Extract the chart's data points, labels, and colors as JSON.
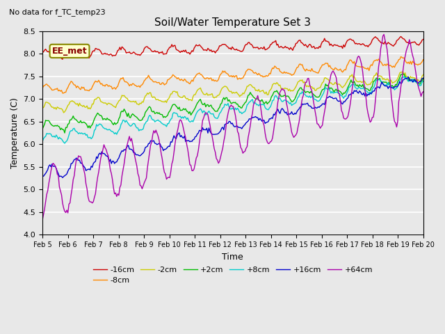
{
  "title": "Soil/Water Temperature Set 3",
  "xlabel": "Time",
  "ylabel": "Temperature (C)",
  "no_data_text": "No data for f_TC_temp23",
  "legend_label_text": "EE_met",
  "ylim": [
    4.0,
    8.5
  ],
  "xtick_labels": [
    "Feb 5",
    "Feb 6",
    "Feb 7",
    "Feb 8",
    "Feb 9",
    "Feb 10",
    "Feb 11",
    "Feb 12",
    "Feb 13",
    "Feb 14",
    "Feb 15",
    "Feb 16",
    "Feb 17",
    "Feb 18",
    "Feb 19",
    "Feb 20"
  ],
  "series": [
    {
      "label": "-16cm",
      "color": "#cc0000"
    },
    {
      "label": "-8cm",
      "color": "#ff8800"
    },
    {
      "label": "-2cm",
      "color": "#cccc00"
    },
    {
      "label": "+2cm",
      "color": "#00bb00"
    },
    {
      "label": "+8cm",
      "color": "#00cccc"
    },
    {
      "label": "+16cm",
      "color": "#0000cc"
    },
    {
      "label": "+64cm",
      "color": "#aa00aa"
    }
  ],
  "plot_bg_color": "#e8e8e8",
  "fig_bg_color": "#e8e8e8"
}
